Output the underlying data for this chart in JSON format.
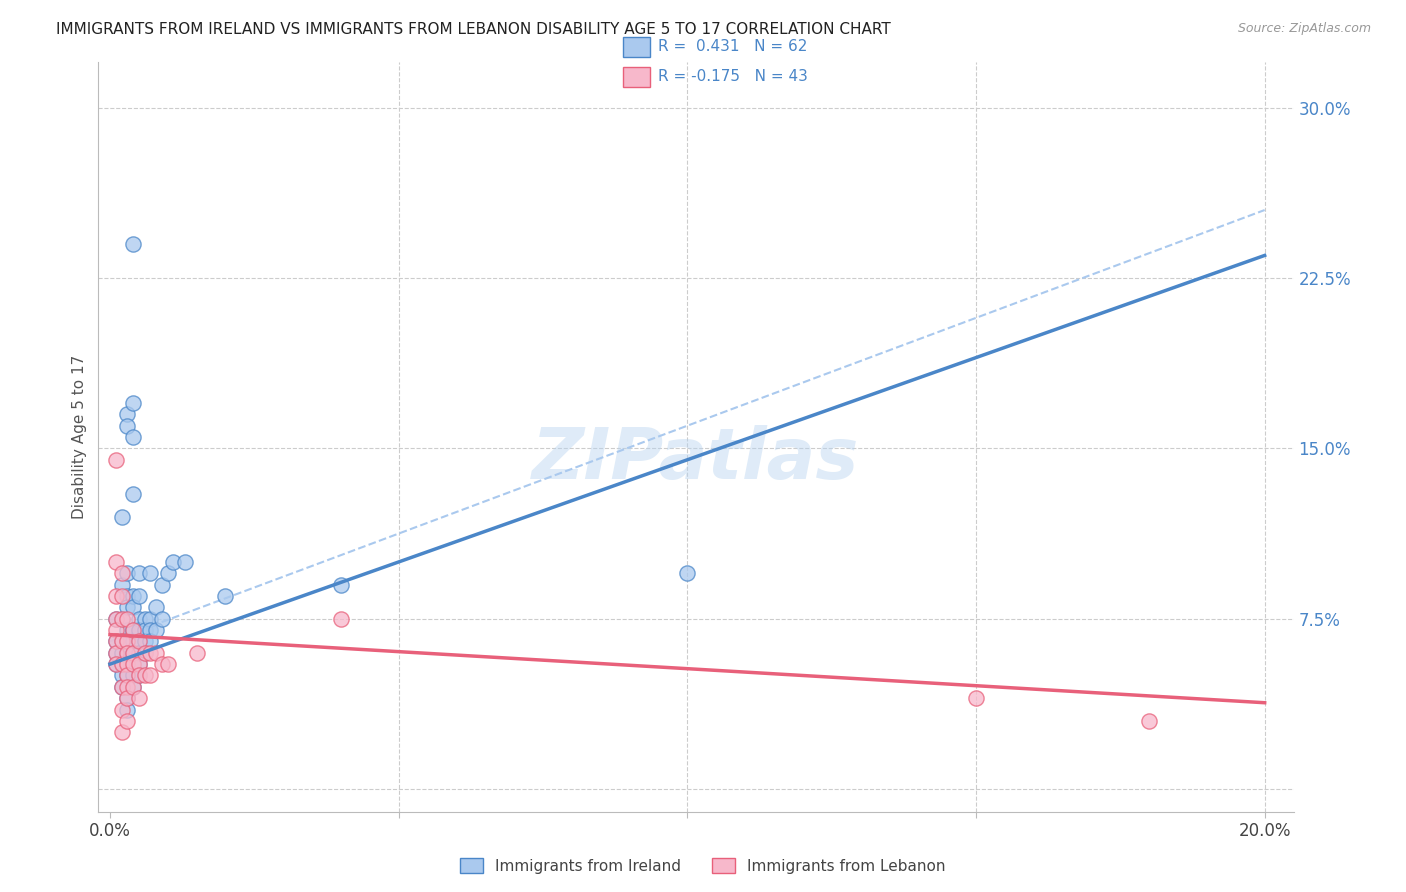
{
  "title": "IMMIGRANTS FROM IRELAND VS IMMIGRANTS FROM LEBANON DISABILITY AGE 5 TO 17 CORRELATION CHART",
  "source": "Source: ZipAtlas.com",
  "ylabel": "Disability Age 5 to 17",
  "xlim": [
    -0.002,
    0.205
  ],
  "ylim": [
    -0.01,
    0.32
  ],
  "xticks": [
    0.0,
    0.05,
    0.1,
    0.15,
    0.2
  ],
  "yticks": [
    0.0,
    0.075,
    0.15,
    0.225,
    0.3
  ],
  "ytick_labels": [
    "",
    "7.5%",
    "15.0%",
    "22.5%",
    "30.0%"
  ],
  "ireland_color": "#aac9ee",
  "lebanon_color": "#f7b8cb",
  "ireland_line_color": "#4a86c8",
  "lebanon_line_color": "#e8607a",
  "dashed_line_color": "#aac9ee",
  "legend_label_ireland": "Immigrants from Ireland",
  "legend_label_lebanon": "Immigrants from Lebanon",
  "watermark": "ZIPatlas",
  "background_color": "#ffffff",
  "grid_color": "#cccccc",
  "ireland_scatter": [
    [
      0.001,
      0.075
    ],
    [
      0.001,
      0.065
    ],
    [
      0.001,
      0.06
    ],
    [
      0.001,
      0.055
    ],
    [
      0.002,
      0.12
    ],
    [
      0.002,
      0.09
    ],
    [
      0.002,
      0.075
    ],
    [
      0.002,
      0.065
    ],
    [
      0.002,
      0.06
    ],
    [
      0.002,
      0.055
    ],
    [
      0.002,
      0.05
    ],
    [
      0.002,
      0.045
    ],
    [
      0.003,
      0.165
    ],
    [
      0.003,
      0.16
    ],
    [
      0.003,
      0.095
    ],
    [
      0.003,
      0.085
    ],
    [
      0.003,
      0.08
    ],
    [
      0.003,
      0.07
    ],
    [
      0.003,
      0.065
    ],
    [
      0.003,
      0.06
    ],
    [
      0.003,
      0.055
    ],
    [
      0.003,
      0.05
    ],
    [
      0.003,
      0.04
    ],
    [
      0.003,
      0.035
    ],
    [
      0.004,
      0.24
    ],
    [
      0.004,
      0.17
    ],
    [
      0.004,
      0.155
    ],
    [
      0.004,
      0.13
    ],
    [
      0.004,
      0.085
    ],
    [
      0.004,
      0.08
    ],
    [
      0.004,
      0.07
    ],
    [
      0.004,
      0.065
    ],
    [
      0.004,
      0.06
    ],
    [
      0.004,
      0.055
    ],
    [
      0.004,
      0.05
    ],
    [
      0.004,
      0.045
    ],
    [
      0.005,
      0.095
    ],
    [
      0.005,
      0.085
    ],
    [
      0.005,
      0.075
    ],
    [
      0.005,
      0.07
    ],
    [
      0.005,
      0.065
    ],
    [
      0.005,
      0.06
    ],
    [
      0.005,
      0.055
    ],
    [
      0.005,
      0.05
    ],
    [
      0.006,
      0.075
    ],
    [
      0.006,
      0.07
    ],
    [
      0.006,
      0.065
    ],
    [
      0.006,
      0.06
    ],
    [
      0.007,
      0.095
    ],
    [
      0.007,
      0.075
    ],
    [
      0.007,
      0.07
    ],
    [
      0.007,
      0.065
    ],
    [
      0.008,
      0.08
    ],
    [
      0.008,
      0.07
    ],
    [
      0.009,
      0.09
    ],
    [
      0.009,
      0.075
    ],
    [
      0.01,
      0.095
    ],
    [
      0.011,
      0.1
    ],
    [
      0.013,
      0.1
    ],
    [
      0.02,
      0.085
    ],
    [
      0.04,
      0.09
    ],
    [
      0.1,
      0.095
    ]
  ],
  "lebanon_scatter": [
    [
      0.001,
      0.145
    ],
    [
      0.001,
      0.1
    ],
    [
      0.001,
      0.085
    ],
    [
      0.001,
      0.075
    ],
    [
      0.001,
      0.07
    ],
    [
      0.001,
      0.065
    ],
    [
      0.001,
      0.06
    ],
    [
      0.001,
      0.055
    ],
    [
      0.002,
      0.095
    ],
    [
      0.002,
      0.085
    ],
    [
      0.002,
      0.075
    ],
    [
      0.002,
      0.065
    ],
    [
      0.002,
      0.055
    ],
    [
      0.002,
      0.045
    ],
    [
      0.002,
      0.035
    ],
    [
      0.002,
      0.025
    ],
    [
      0.003,
      0.075
    ],
    [
      0.003,
      0.065
    ],
    [
      0.003,
      0.06
    ],
    [
      0.003,
      0.055
    ],
    [
      0.003,
      0.05
    ],
    [
      0.003,
      0.045
    ],
    [
      0.003,
      0.04
    ],
    [
      0.003,
      0.03
    ],
    [
      0.004,
      0.07
    ],
    [
      0.004,
      0.06
    ],
    [
      0.004,
      0.055
    ],
    [
      0.004,
      0.045
    ],
    [
      0.005,
      0.065
    ],
    [
      0.005,
      0.055
    ],
    [
      0.005,
      0.05
    ],
    [
      0.005,
      0.04
    ],
    [
      0.006,
      0.06
    ],
    [
      0.006,
      0.05
    ],
    [
      0.007,
      0.06
    ],
    [
      0.007,
      0.05
    ],
    [
      0.008,
      0.06
    ],
    [
      0.009,
      0.055
    ],
    [
      0.01,
      0.055
    ],
    [
      0.015,
      0.06
    ],
    [
      0.04,
      0.075
    ],
    [
      0.15,
      0.04
    ],
    [
      0.18,
      0.03
    ]
  ],
  "ireland_line": [
    [
      0.0,
      0.055
    ],
    [
      0.2,
      0.235
    ]
  ],
  "lebanon_line": [
    [
      0.0,
      0.068
    ],
    [
      0.2,
      0.038
    ]
  ]
}
